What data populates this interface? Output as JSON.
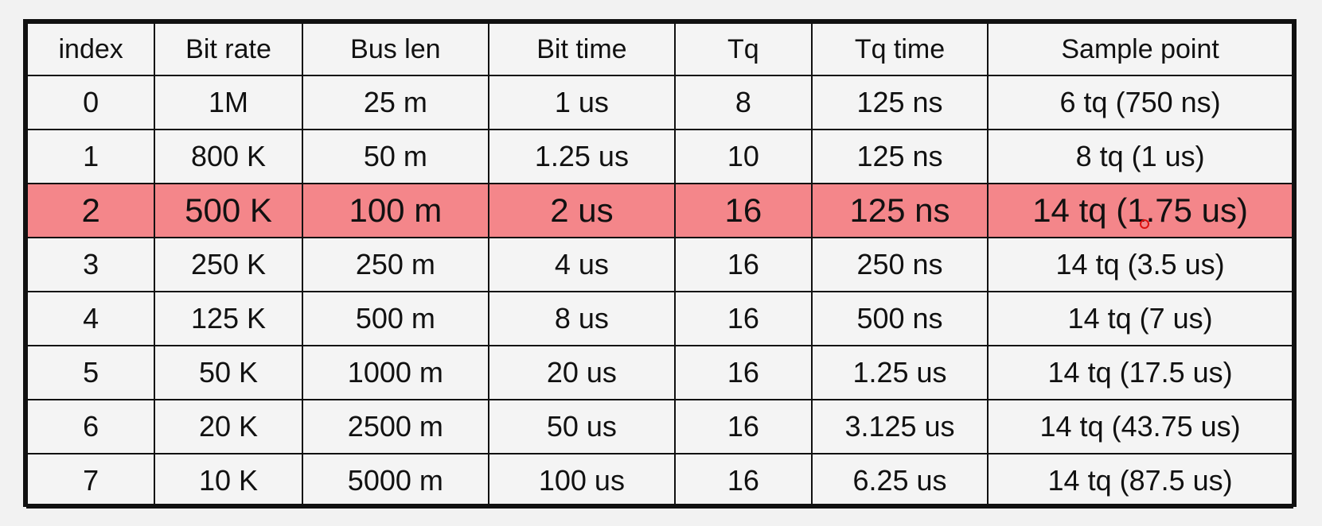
{
  "table": {
    "headers": [
      "index",
      "Bit rate",
      "Bus len",
      "Bit time",
      "Tq",
      "Tq time",
      "Sample point"
    ],
    "rows": [
      [
        "0",
        "1M",
        "25 m",
        "1 us",
        "8",
        "125 ns",
        "6 tq (750 ns)"
      ],
      [
        "1",
        "800 K",
        "50 m",
        "1.25 us",
        "10",
        "125 ns",
        "8 tq (1 us)"
      ],
      [
        "2",
        "500 K",
        "100 m",
        "2 us",
        "16",
        "125 ns",
        "14 tq (1.75 us)"
      ],
      [
        "3",
        "250 K",
        "250 m",
        "4 us",
        "16",
        "250 ns",
        "14 tq (3.5 us)"
      ],
      [
        "4",
        "125 K",
        "500 m",
        "8 us",
        "16",
        "500 ns",
        "14 tq (7 us)"
      ],
      [
        "5",
        "50 K",
        "1000 m",
        "20 us",
        "16",
        "1.25 us",
        "14 tq (17.5 us)"
      ],
      [
        "6",
        "20 K",
        "2500 m",
        "50 us",
        "16",
        "3.125 us",
        "14 tq (43.75 us)"
      ],
      [
        "7",
        "10 K",
        "5000 m",
        "100 us",
        "16",
        "6.25 us",
        "14 tq (87.5 us)"
      ]
    ],
    "highlighted_row_index": 2,
    "highlight_color": "#f4868a"
  }
}
